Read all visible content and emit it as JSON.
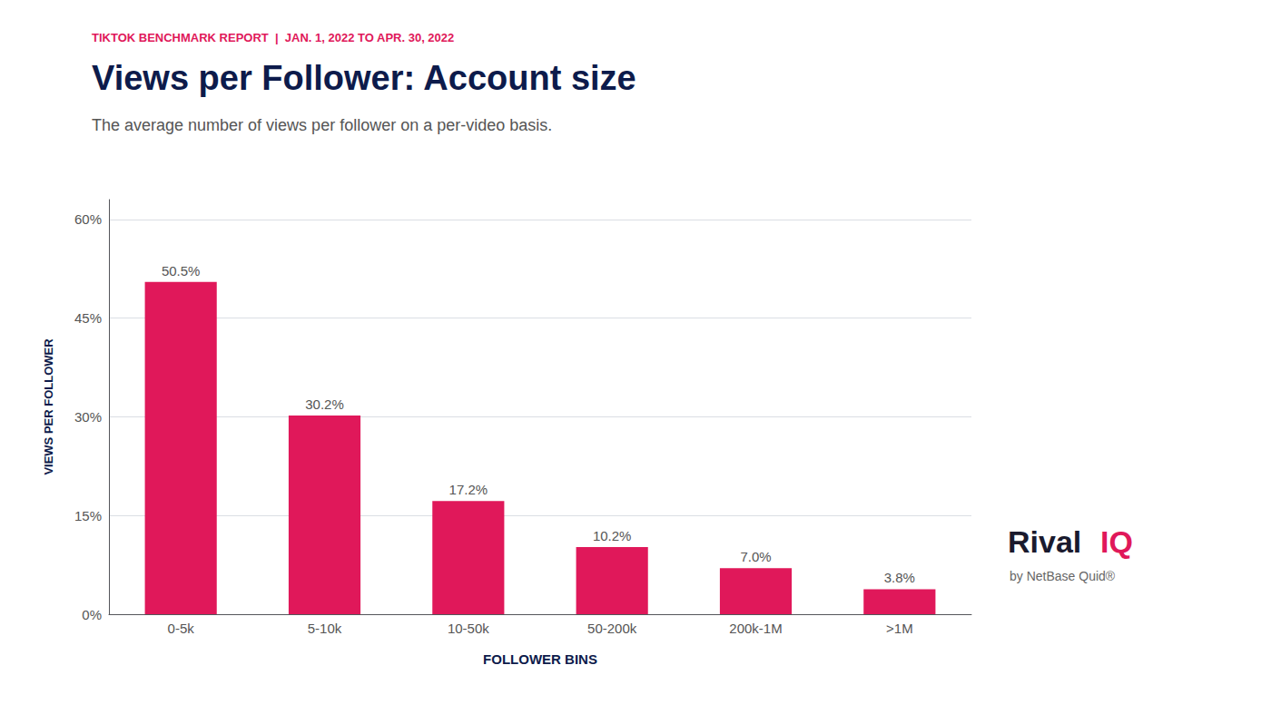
{
  "chart_data": {
    "type": "bar",
    "supertitle": "TIKTOK BENCHMARK REPORT  |  JAN. 1, 2022 TO APR. 30, 2022",
    "title": "Views per Follower: Account size",
    "subtitle": "The average number of views per follower on a per-video basis.",
    "xlabel": "FOLLOWER BINS",
    "ylabel": "VIEWS PER FOLLOWER",
    "categories": [
      "0-5k",
      "5-10k",
      "10-50k",
      "50-200k",
      "200k-1M",
      ">1M"
    ],
    "values": [
      50.5,
      30.2,
      17.2,
      10.2,
      7.0,
      3.8
    ],
    "value_labels": [
      "50.5%",
      "30.2%",
      "17.2%",
      "10.2%",
      "7.0%",
      "3.8%"
    ],
    "data_labels": true,
    "color": "#E0185A",
    "ylim": [
      0,
      63
    ],
    "yticks": [
      {
        "value": 0,
        "label": "0%"
      },
      {
        "value": 15,
        "label": "15%"
      },
      {
        "value": 30,
        "label": "30%"
      },
      {
        "value": 45,
        "label": "45%"
      },
      {
        "value": 60,
        "label": "60%"
      }
    ],
    "grid": true,
    "annotations": [
      "Rival",
      "IQ",
      "by NetBase Quid®"
    ]
  }
}
